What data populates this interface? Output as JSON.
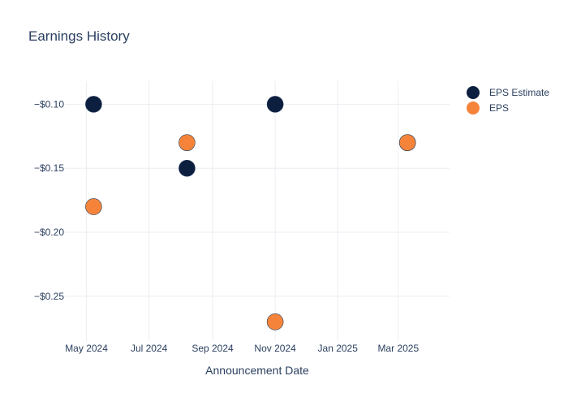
{
  "chart_data": {
    "type": "scatter",
    "title": "Earnings History",
    "xlabel": "Announcement Date",
    "ylabel": "",
    "x_axis_type": "date",
    "xlim": [
      "2024-04-10",
      "2025-04-20"
    ],
    "x_ticks": [
      {
        "date": "2024-05-01",
        "label": "May 2024"
      },
      {
        "date": "2024-07-01",
        "label": "Jul 2024"
      },
      {
        "date": "2024-09-01",
        "label": "Sep 2024"
      },
      {
        "date": "2024-11-01",
        "label": "Nov 2024"
      },
      {
        "date": "2025-01-01",
        "label": "Jan 2025"
      },
      {
        "date": "2025-03-01",
        "label": "Mar 2025"
      }
    ],
    "ylim": [
      -0.285,
      -0.082
    ],
    "y_ticks": [
      {
        "value": -0.1,
        "label": "−$0.10"
      },
      {
        "value": -0.15,
        "label": "−$0.15"
      },
      {
        "value": -0.2,
        "label": "−$0.20"
      },
      {
        "value": -0.25,
        "label": "−$0.25"
      }
    ],
    "grid": true,
    "legend_position": "top-right",
    "series": [
      {
        "name": "EPS Estimate",
        "color": "#0d1f3f",
        "points": [
          {
            "x": "2024-05-08",
            "y": -0.1
          },
          {
            "x": "2024-08-07",
            "y": -0.15
          },
          {
            "x": "2024-11-01",
            "y": -0.1
          },
          {
            "x": "2025-03-10",
            "y": -0.13
          }
        ]
      },
      {
        "name": "EPS",
        "color": "#f5843a",
        "points": [
          {
            "x": "2024-05-08",
            "y": -0.18
          },
          {
            "x": "2024-08-07",
            "y": -0.13
          },
          {
            "x": "2024-11-01",
            "y": -0.27
          },
          {
            "x": "2025-03-10",
            "y": -0.13
          }
        ]
      }
    ]
  }
}
